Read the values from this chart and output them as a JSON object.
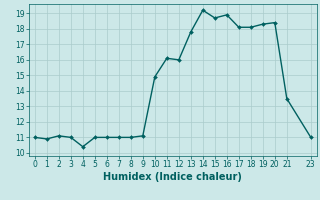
{
  "x": [
    0,
    1,
    2,
    3,
    4,
    5,
    6,
    7,
    8,
    9,
    10,
    11,
    12,
    13,
    14,
    15,
    16,
    17,
    18,
    19,
    20,
    21,
    23
  ],
  "y": [
    11,
    10.9,
    11.1,
    11,
    10.4,
    11,
    11,
    11,
    11,
    11.1,
    14.9,
    16.1,
    16.0,
    17.8,
    19.2,
    18.7,
    18.9,
    18.1,
    18.1,
    18.3,
    18.4,
    13.5,
    11
  ],
  "line_color": "#006060",
  "marker_color": "#006060",
  "bg_color": "#cce8e8",
  "grid_color": "#aacccc",
  "xlabel": "Humidex (Indice chaleur)",
  "xlabel_fontsize": 7,
  "xlim": [
    -0.5,
    23.5
  ],
  "ylim": [
    9.8,
    19.6
  ],
  "yticks": [
    10,
    11,
    12,
    13,
    14,
    15,
    16,
    17,
    18,
    19
  ],
  "xticks": [
    0,
    1,
    2,
    3,
    4,
    5,
    6,
    7,
    8,
    9,
    10,
    11,
    12,
    13,
    14,
    15,
    16,
    17,
    18,
    19,
    20,
    21,
    23
  ],
  "tick_fontsize": 5.5,
  "linewidth": 1.0,
  "markersize": 2.0
}
